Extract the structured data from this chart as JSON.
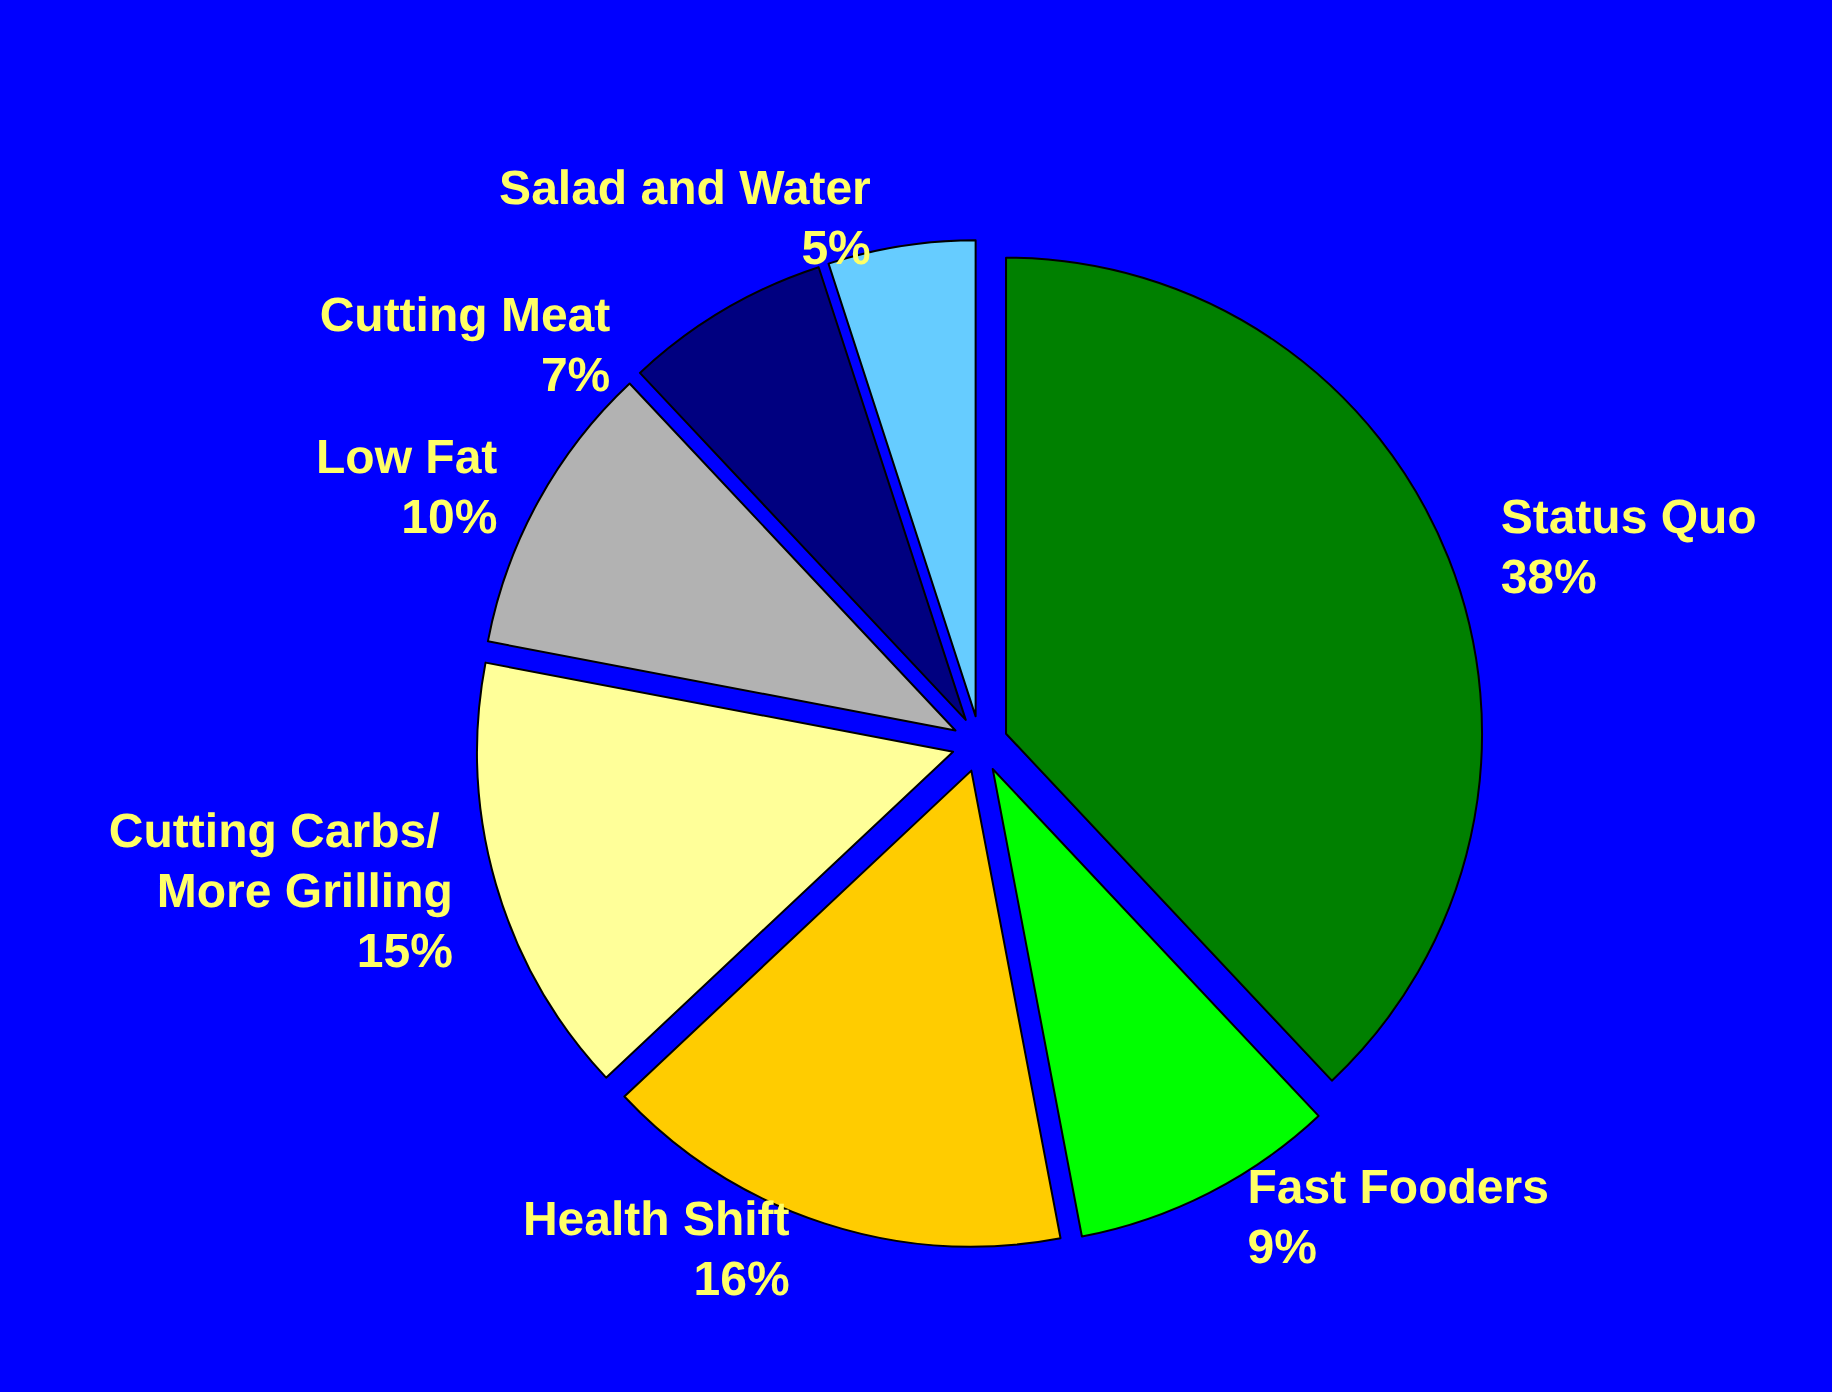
{
  "chart_data": {
    "type": "pie",
    "categories": [
      "Status Quo",
      "Fast Fooders",
      "Health Shift",
      "Cutting Carbs/ More Grilling",
      "Low Fat",
      "Cutting Meat",
      "Salad and Water"
    ],
    "values": [
      38,
      9,
      16,
      15,
      10,
      7,
      5
    ],
    "value_labels": [
      "38%",
      "9%",
      "16%",
      "15%",
      "10%",
      "7%",
      "5%"
    ],
    "colors": [
      "#008000",
      "#00ff00",
      "#ffcc00",
      "#ffff99",
      "#b2b2b2",
      "#000080",
      "#66ccff"
    ],
    "legend": false
  }
}
